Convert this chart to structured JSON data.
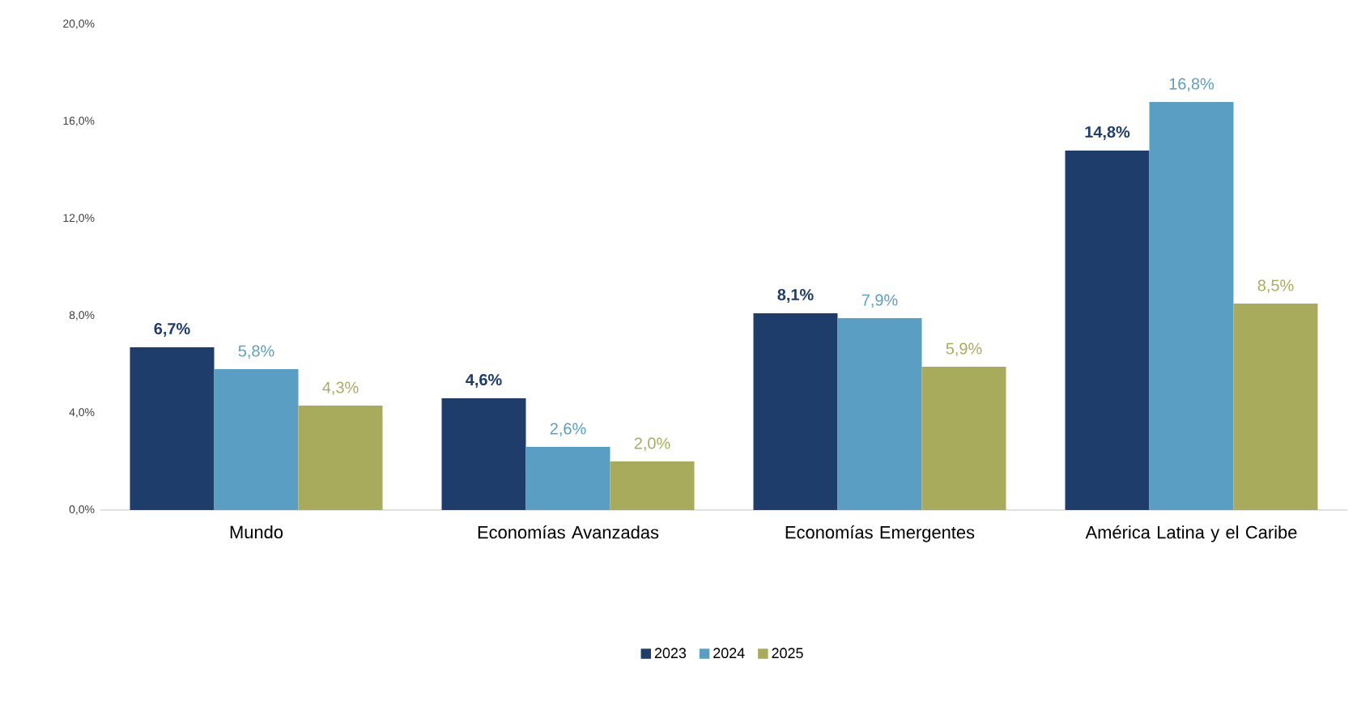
{
  "chart_data": {
    "type": "bar",
    "categories": [
      "Mundo",
      "Economías Avanzadas",
      "Economías Emergentes",
      "América Latina y el Caribe"
    ],
    "series": [
      {
        "name": "2023",
        "color": "#1f3d6b",
        "values": [
          6.7,
          4.6,
          8.1,
          14.8
        ],
        "value_labels": [
          "6,7%",
          "4,6%",
          "8,1%",
          "14,8%"
        ]
      },
      {
        "name": "2024",
        "color": "#5b9ec4",
        "values": [
          5.8,
          2.6,
          7.9,
          16.8
        ],
        "value_labels": [
          "5,8%",
          "2,6%",
          "7,9%",
          "16,8%"
        ]
      },
      {
        "name": "2025",
        "color": "#a8ab5c",
        "values": [
          4.3,
          2.0,
          5.9,
          8.5
        ],
        "value_labels": [
          "4,3%",
          "2,0%",
          "5,9%",
          "8,5%"
        ]
      }
    ],
    "ylim": [
      0,
      20
    ],
    "yticks": [
      {
        "value": 0,
        "label": "0,0%"
      },
      {
        "value": 4,
        "label": "4,0%"
      },
      {
        "value": 8,
        "label": "8,0%"
      },
      {
        "value": 12,
        "label": "12,0%"
      },
      {
        "value": 16,
        "label": "16,0%"
      },
      {
        "value": 20,
        "label": "20,0%"
      }
    ],
    "grid": false,
    "legend": "bottom"
  }
}
